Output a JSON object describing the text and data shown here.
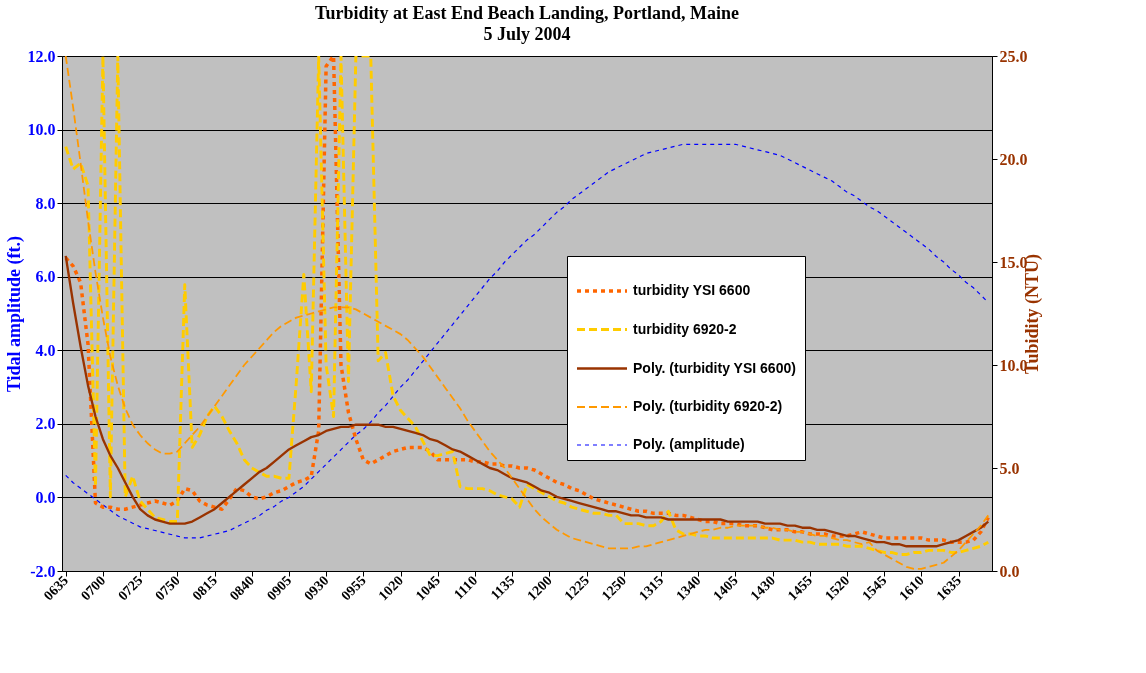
{
  "chart_data": {
    "type": "line",
    "title": "Turbidity at East End Beach Landing, Portland, Maine",
    "subtitle": "5 July 2004",
    "ylabel": "Tidal amplitude (ft.)",
    "y2label": "Tubidity (NTU)",
    "categories": [
      "0635",
      null,
      null,
      null,
      null,
      "0700",
      null,
      null,
      null,
      null,
      "0725",
      null,
      null,
      null,
      null,
      "0750",
      null,
      null,
      null,
      null,
      "0815",
      null,
      null,
      null,
      null,
      "0840",
      null,
      null,
      null,
      null,
      "0905",
      null,
      null,
      null,
      null,
      "0930",
      null,
      null,
      null,
      null,
      "0955",
      null,
      null,
      null,
      null,
      "1020",
      null,
      null,
      null,
      null,
      "1045",
      null,
      null,
      null,
      null,
      "1110",
      null,
      null,
      null,
      null,
      "1135",
      null,
      null,
      null,
      null,
      "1200",
      null,
      null,
      null,
      null,
      "1225",
      null,
      null,
      null,
      null,
      "1250",
      null,
      null,
      null,
      null,
      "1315",
      null,
      null,
      null,
      null,
      "1340",
      null,
      null,
      null,
      null,
      "1405",
      null,
      null,
      null,
      null,
      "1430",
      null,
      null,
      null,
      null,
      "1455",
      null,
      null,
      null,
      null,
      "1520",
      null,
      null,
      null,
      null,
      "1545",
      null,
      null,
      null,
      null,
      "1610",
      null,
      null,
      null,
      null,
      "1635",
      null,
      null,
      null,
      null
    ],
    "ylim": [
      -2,
      12
    ],
    "yticks": [
      {
        "value": -2,
        "label": "-2.0"
      },
      {
        "value": 0,
        "label": "0.0"
      },
      {
        "value": 2,
        "label": "2.0"
      },
      {
        "value": 4,
        "label": "4.0"
      },
      {
        "value": 6,
        "label": "6.0"
      },
      {
        "value": 8,
        "label": "8.0"
      },
      {
        "value": 10,
        "label": "10.0"
      },
      {
        "value": 12,
        "label": "12.0"
      }
    ],
    "y2lim": [
      0,
      25
    ],
    "y2ticks": [
      {
        "value": 0,
        "label": "0.0"
      },
      {
        "value": 5,
        "label": "5.0"
      },
      {
        "value": 10,
        "label": "10.0"
      },
      {
        "value": 15,
        "label": "15.0"
      },
      {
        "value": 20,
        "label": "20.0"
      },
      {
        "value": 25,
        "label": "25.0"
      }
    ],
    "grid": "y",
    "legend": "right",
    "series": [
      {
        "name": "turbidity YSI 6600",
        "color": "#ff6600",
        "axis": "y2",
        "line_style": "dotted",
        "values": [
          15.2,
          14.8,
          14.0,
          11.0,
          3.3,
          3.1,
          3.1,
          3.0,
          3.0,
          3.1,
          3.2,
          3.3,
          3.4,
          3.3,
          3.2,
          3.4,
          4.0,
          3.9,
          3.4,
          3.2,
          3.1,
          3.0,
          3.5,
          4.0,
          3.9,
          3.6,
          3.5,
          3.6,
          3.8,
          3.9,
          4.1,
          4.3,
          4.4,
          4.6,
          6.8,
          24.5,
          25.0,
          10.0,
          7.7,
          6.4,
          5.4,
          5.2,
          5.4,
          5.6,
          5.8,
          5.9,
          6.0,
          6.0,
          6.0,
          5.8,
          5.4,
          5.4,
          5.4,
          5.4,
          5.4,
          5.3,
          5.3,
          5.2,
          5.2,
          5.1,
          5.1,
          5.0,
          5.0,
          4.9,
          4.7,
          4.5,
          4.3,
          4.2,
          4.0,
          3.9,
          3.7,
          3.5,
          3.4,
          3.3,
          3.2,
          3.1,
          3.0,
          2.9,
          2.9,
          2.8,
          2.8,
          2.8,
          2.7,
          2.7,
          2.6,
          2.5,
          2.4,
          2.4,
          2.3,
          2.3,
          2.3,
          2.2,
          2.2,
          2.2,
          2.1,
          2.0,
          2.0,
          2.0,
          1.9,
          1.9,
          1.8,
          1.8,
          1.8,
          1.7,
          1.7,
          1.7,
          1.8,
          1.9,
          1.8,
          1.7,
          1.6,
          1.6,
          1.6,
          1.6,
          1.6,
          1.6,
          1.5,
          1.5,
          1.5,
          1.4,
          1.4,
          1.4,
          1.5,
          1.9,
          2.6
        ]
      },
      {
        "name": "turbidity 6920-2",
        "color": "#ffcc00",
        "axis": "y2",
        "line_style": "dashed",
        "values": [
          20.6,
          19.5,
          19.8,
          18.7,
          4.1,
          25.0,
          3.6,
          25.0,
          3.6,
          4.6,
          3.4,
          3.0,
          2.6,
          2.5,
          2.4,
          2.4,
          13.9,
          6.0,
          6.6,
          7.5,
          8.0,
          7.5,
          6.8,
          6.2,
          5.4,
          5.0,
          4.8,
          4.6,
          4.6,
          4.5,
          4.5,
          9.2,
          14.4,
          8.7,
          25.0,
          10.0,
          7.5,
          25.0,
          9.2,
          25.0,
          25.0,
          25.0,
          10.2,
          10.6,
          8.5,
          7.8,
          7.4,
          7.0,
          6.3,
          5.6,
          5.6,
          5.7,
          5.8,
          4.1,
          4.0,
          4.0,
          4.0,
          3.9,
          3.7,
          3.6,
          3.5,
          3.1,
          4.2,
          4.0,
          3.8,
          3.6,
          3.4,
          3.3,
          3.1,
          3.0,
          2.9,
          2.8,
          2.8,
          2.7,
          2.7,
          2.3,
          2.3,
          2.3,
          2.2,
          2.2,
          2.4,
          2.9,
          2.0,
          1.8,
          1.8,
          1.7,
          1.7,
          1.6,
          1.6,
          1.6,
          1.6,
          1.6,
          1.6,
          1.6,
          1.6,
          1.6,
          1.5,
          1.5,
          1.5,
          1.4,
          1.4,
          1.3,
          1.3,
          1.3,
          1.3,
          1.2,
          1.2,
          1.2,
          1.1,
          1.0,
          0.9,
          0.9,
          0.8,
          0.8,
          0.9,
          0.9,
          1.0,
          1.0,
          1.0,
          0.9,
          0.9,
          1.0,
          1.1,
          1.2,
          1.4
        ]
      },
      {
        "name": "Poly. (turbidity YSI 6600)",
        "color": "#993300",
        "axis": "y2",
        "line_style": "solid",
        "values": [
          15.3,
          13.0,
          10.9,
          9.0,
          7.5,
          6.4,
          5.6,
          5.0,
          4.3,
          3.6,
          3.0,
          2.7,
          2.5,
          2.4,
          2.3,
          2.3,
          2.3,
          2.4,
          2.6,
          2.8,
          3.0,
          3.3,
          3.6,
          3.9,
          4.2,
          4.5,
          4.8,
          5.0,
          5.3,
          5.6,
          5.9,
          6.1,
          6.3,
          6.5,
          6.6,
          6.8,
          6.9,
          7.0,
          7.0,
          7.1,
          7.1,
          7.1,
          7.1,
          7.0,
          7.0,
          6.9,
          6.8,
          6.7,
          6.6,
          6.4,
          6.3,
          6.1,
          5.9,
          5.8,
          5.6,
          5.4,
          5.2,
          5.0,
          4.9,
          4.7,
          4.5,
          4.4,
          4.3,
          4.1,
          3.9,
          3.8,
          3.6,
          3.5,
          3.4,
          3.3,
          3.2,
          3.1,
          3.0,
          2.9,
          2.9,
          2.8,
          2.7,
          2.7,
          2.6,
          2.6,
          2.6,
          2.5,
          2.5,
          2.5,
          2.5,
          2.5,
          2.5,
          2.5,
          2.5,
          2.4,
          2.4,
          2.4,
          2.4,
          2.4,
          2.3,
          2.3,
          2.3,
          2.2,
          2.2,
          2.1,
          2.1,
          2.0,
          2.0,
          1.9,
          1.8,
          1.7,
          1.7,
          1.6,
          1.5,
          1.4,
          1.4,
          1.3,
          1.3,
          1.2,
          1.2,
          1.2,
          1.2,
          1.2,
          1.3,
          1.4,
          1.5,
          1.7,
          1.9,
          2.1,
          2.4
        ]
      },
      {
        "name": "Poly. (turbidity 6920-2)",
        "color": "#ff9900",
        "axis": "y2",
        "line_style": "dashed",
        "values": [
          25.0,
          22.5,
          19.8,
          17.0,
          14.5,
          12.3,
          10.4,
          9.0,
          7.9,
          7.1,
          6.6,
          6.2,
          5.9,
          5.7,
          5.7,
          5.8,
          6.2,
          6.6,
          7.0,
          7.5,
          8.0,
          8.5,
          9.0,
          9.5,
          10.0,
          10.4,
          10.8,
          11.2,
          11.6,
          11.9,
          12.1,
          12.3,
          12.4,
          12.5,
          12.6,
          12.7,
          12.8,
          12.8,
          12.8,
          12.7,
          12.5,
          12.3,
          12.1,
          11.9,
          11.7,
          11.5,
          11.2,
          10.8,
          10.4,
          9.9,
          9.4,
          8.9,
          8.4,
          7.9,
          7.3,
          6.8,
          6.3,
          5.8,
          5.4,
          5.0,
          4.5,
          4.0,
          3.5,
          3.0,
          2.6,
          2.3,
          2.0,
          1.8,
          1.6,
          1.5,
          1.4,
          1.3,
          1.2,
          1.1,
          1.1,
          1.1,
          1.1,
          1.2,
          1.2,
          1.3,
          1.4,
          1.5,
          1.6,
          1.7,
          1.8,
          1.9,
          2.0,
          2.0,
          2.1,
          2.1,
          2.2,
          2.2,
          2.2,
          2.2,
          2.1,
          2.1,
          2.0,
          2.0,
          1.9,
          1.9,
          1.8,
          1.7,
          1.7,
          1.6,
          1.5,
          1.5,
          1.4,
          1.3,
          1.4,
          1.0,
          0.8,
          0.6,
          0.4,
          0.2,
          0.1,
          0.1,
          0.2,
          0.3,
          0.4,
          0.7,
          1.0,
          1.4,
          1.8,
          2.2,
          2.7
        ]
      },
      {
        "name": "Poly. (amplitude)",
        "color": "#0000ff",
        "axis": "y",
        "line_style": "dotted",
        "values": [
          0.6,
          0.4,
          0.25,
          0.1,
          -0.05,
          -0.2,
          -0.35,
          -0.5,
          -0.6,
          -0.7,
          -0.8,
          -0.85,
          -0.9,
          -0.95,
          -1.0,
          -1.05,
          -1.1,
          -1.1,
          -1.1,
          -1.05,
          -1.0,
          -0.95,
          -0.9,
          -0.8,
          -0.7,
          -0.6,
          -0.5,
          -0.35,
          -0.25,
          -0.1,
          0.0,
          0.15,
          0.3,
          0.5,
          0.7,
          0.9,
          1.1,
          1.3,
          1.5,
          1.7,
          1.85,
          2.05,
          2.3,
          2.5,
          2.75,
          3.0,
          3.2,
          3.45,
          3.7,
          3.95,
          4.2,
          4.45,
          4.7,
          4.95,
          5.2,
          5.45,
          5.7,
          5.95,
          6.15,
          6.4,
          6.6,
          6.8,
          7.0,
          7.15,
          7.35,
          7.55,
          7.75,
          7.9,
          8.1,
          8.25,
          8.4,
          8.55,
          8.7,
          8.85,
          8.95,
          9.05,
          9.15,
          9.25,
          9.35,
          9.4,
          9.45,
          9.5,
          9.55,
          9.6,
          9.6,
          9.6,
          9.6,
          9.6,
          9.6,
          9.6,
          9.6,
          9.55,
          9.5,
          9.45,
          9.4,
          9.35,
          9.3,
          9.2,
          9.1,
          9.0,
          8.9,
          8.8,
          8.7,
          8.6,
          8.45,
          8.3,
          8.2,
          8.05,
          7.9,
          7.8,
          7.65,
          7.5,
          7.35,
          7.2,
          7.05,
          6.9,
          6.75,
          6.55,
          6.4,
          6.2,
          6.05,
          5.85,
          5.7,
          5.5,
          5.3
        ]
      }
    ]
  }
}
